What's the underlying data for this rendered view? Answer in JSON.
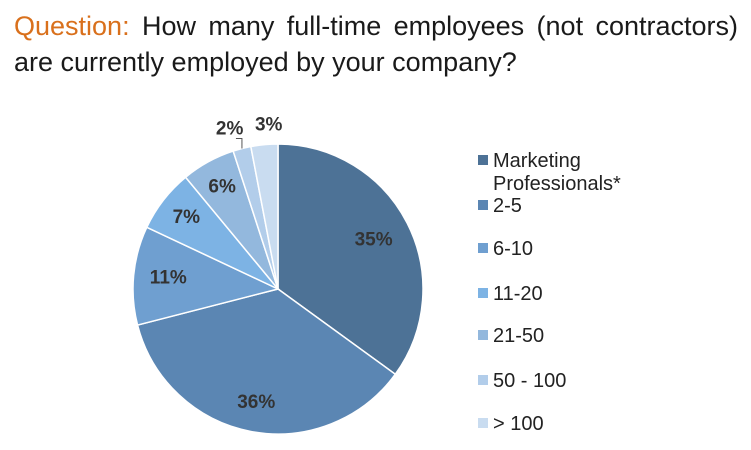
{
  "question": {
    "label": "Question:",
    "text": "How many full-time employees (not contractors) are currently employed by your company?"
  },
  "chart_data": {
    "type": "pie",
    "categories": [
      "Marketing Professionals*",
      "2-5",
      "6-10",
      "11-20",
      "21-50",
      "50 - 100",
      "> 100"
    ],
    "values": [
      35,
      36,
      11,
      7,
      6,
      2,
      3
    ],
    "value_labels": [
      "35%",
      "36%",
      "11%",
      "7%",
      "6%",
      "2%",
      "3%"
    ],
    "colors": [
      "#4d7296",
      "#5b86b3",
      "#6f9fd0",
      "#7db3e4",
      "#93b8dd",
      "#b2cdea",
      "#c9dcf0"
    ],
    "legend_position": "right",
    "start_angle": "12 o'clock",
    "direction": "clockwise"
  }
}
